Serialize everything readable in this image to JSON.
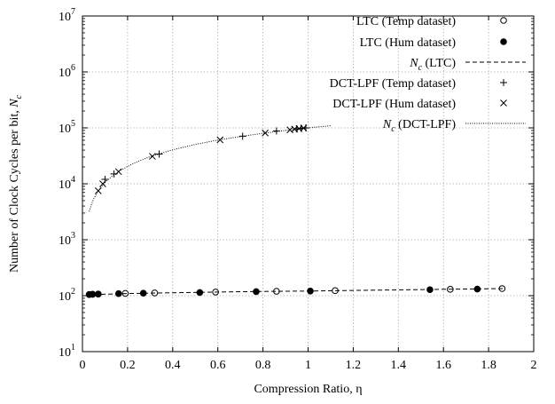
{
  "chart_data": {
    "type": "scatter",
    "title": "",
    "xlabel": "Compression Ratio, η",
    "ylabel_main": "Number of Clock Cycles per bit, ",
    "ylabel_sym": "N",
    "ylabel_sub": "c",
    "xlim": [
      0,
      2
    ],
    "ylim_log10": [
      1,
      7
    ],
    "y_scale": "log",
    "grid": true,
    "legend_position": "top-right",
    "x_ticks": [
      {
        "value": 0,
        "label": "0"
      },
      {
        "value": 0.2,
        "label": "0.2"
      },
      {
        "value": 0.4,
        "label": "0.4"
      },
      {
        "value": 0.6,
        "label": "0.6"
      },
      {
        "value": 0.8,
        "label": "0.8"
      },
      {
        "value": 1.0,
        "label": "1"
      },
      {
        "value": 1.2,
        "label": "1.2"
      },
      {
        "value": 1.4,
        "label": "1.4"
      },
      {
        "value": 1.6,
        "label": "1.6"
      },
      {
        "value": 1.8,
        "label": "1.8"
      },
      {
        "value": 2.0,
        "label": "2"
      }
    ],
    "y_ticks": [
      {
        "exp": 1,
        "base": "10",
        "sup": "1"
      },
      {
        "exp": 2,
        "base": "10",
        "sup": "2"
      },
      {
        "exp": 3,
        "base": "10",
        "sup": "3"
      },
      {
        "exp": 4,
        "base": "10",
        "sup": "4"
      },
      {
        "exp": 5,
        "base": "10",
        "sup": "5"
      },
      {
        "exp": 6,
        "base": "10",
        "sup": "6"
      },
      {
        "exp": 7,
        "base": "10",
        "sup": "7"
      }
    ],
    "series": [
      {
        "name": "LTC (Temp dataset)",
        "marker": "open-circle",
        "kind": "points",
        "x": [
          0.03,
          0.045,
          0.07,
          0.19,
          0.32,
          0.59,
          0.86,
          1.12,
          1.63,
          1.86
        ],
        "y": [
          105,
          106,
          107,
          110,
          112,
          116,
          120,
          123,
          130,
          134
        ]
      },
      {
        "name": "LTC (Hum dataset)",
        "marker": "filled-circle",
        "kind": "points",
        "x": [
          0.03,
          0.045,
          0.07,
          0.16,
          0.27,
          0.52,
          0.77,
          1.01,
          1.54,
          1.75
        ],
        "y": [
          105,
          106,
          107,
          109,
          111,
          114,
          118,
          121,
          128,
          131
        ]
      },
      {
        "name_main": "N",
        "name_sub": "c",
        "name_rest": " (LTC)",
        "line": "dashed",
        "kind": "line",
        "x": [
          0.02,
          0.2,
          0.4,
          0.6,
          0.8,
          1.0,
          1.2,
          1.4,
          1.6,
          1.87
        ],
        "y": [
          104,
          109,
          113,
          116,
          119,
          121,
          124,
          127,
          130,
          134
        ]
      },
      {
        "name": "DCT-LPF (Temp dataset)",
        "marker": "plus",
        "kind": "points",
        "x": [
          0.1,
          0.14,
          0.34,
          0.71,
          0.86,
          0.95,
          0.97,
          0.99
        ],
        "y": [
          12000,
          15000,
          34000,
          71000,
          88000,
          96000,
          98000,
          100000
        ]
      },
      {
        "name": "DCT-LPF (Hum dataset)",
        "marker": "cross",
        "kind": "points",
        "x": [
          0.07,
          0.09,
          0.16,
          0.31,
          0.61,
          0.81,
          0.92,
          0.94,
          0.96,
          0.98
        ],
        "y": [
          7500,
          10000,
          16500,
          31000,
          61000,
          81000,
          92000,
          95000,
          97000,
          99000
        ]
      },
      {
        "name_main": "N",
        "name_sub": "c",
        "name_rest": " (DCT-LPF)",
        "line": "dotted",
        "kind": "line",
        "x": [
          0.03,
          0.04,
          0.05,
          0.07,
          0.1,
          0.13,
          0.16,
          0.2,
          0.25,
          0.3,
          0.4,
          0.5,
          0.6,
          0.7,
          0.8,
          0.9,
          1.0,
          1.1
        ],
        "y": [
          3200,
          4300,
          5400,
          7500,
          10700,
          13500,
          16500,
          20500,
          25500,
          30500,
          40500,
          50500,
          60500,
          70000,
          80000,
          90000,
          100000,
          109000
        ]
      }
    ]
  }
}
